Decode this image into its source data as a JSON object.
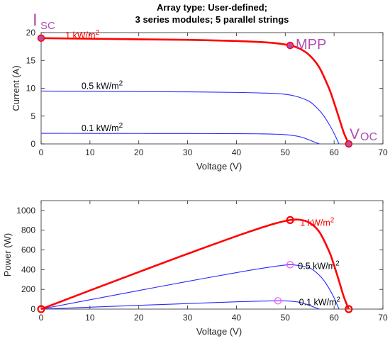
{
  "chart_data": [
    {
      "type": "line",
      "title": "Array type: User-defined;\n3 series modules; 5 parallel strings",
      "title_lines": [
        "Array type: User-defined;",
        "3 series modules; 5 parallel strings"
      ],
      "xlabel": "Voltage (V)",
      "ylabel": "Current (A)",
      "xlim": [
        0,
        70
      ],
      "ylim": [
        0,
        20
      ],
      "xticks": [
        0,
        10,
        20,
        30,
        40,
        50,
        60,
        70
      ],
      "yticks": [
        0,
        5,
        10,
        15,
        20
      ],
      "grid": false,
      "series": [
        {
          "name": "1 kW/m²",
          "label_text": "1 kW/m",
          "label_sup": "2",
          "color": "#ff0000",
          "x": [
            0,
            10,
            20,
            30,
            40,
            45,
            48,
            51,
            53,
            55,
            57,
            59,
            60,
            61,
            62,
            63
          ],
          "y": [
            19.0,
            18.9,
            18.8,
            18.7,
            18.5,
            18.3,
            18.1,
            17.7,
            17.1,
            15.9,
            13.7,
            9.9,
            7.4,
            4.7,
            2.0,
            0
          ]
        },
        {
          "name": "0.5 kW/m²",
          "label_text": "0.5 kW/m",
          "label_sup": "2",
          "color": "#2929ff",
          "x": [
            0,
            10,
            20,
            30,
            40,
            45,
            49,
            52,
            55,
            57,
            58,
            59,
            60,
            61
          ],
          "y": [
            9.5,
            9.45,
            9.4,
            9.35,
            9.25,
            9.15,
            9.0,
            8.6,
            7.6,
            6.0,
            4.9,
            3.5,
            1.9,
            0
          ]
        },
        {
          "name": "0.1 kW/m²",
          "label_text": "0.1 kW/m",
          "label_sup": "2",
          "color": "#2929ff",
          "x": [
            0,
            10,
            20,
            30,
            40,
            45,
            48,
            50,
            52,
            53,
            54,
            55,
            56,
            57
          ],
          "y": [
            1.9,
            1.89,
            1.88,
            1.87,
            1.84,
            1.81,
            1.75,
            1.66,
            1.46,
            1.28,
            1.02,
            0.68,
            0.32,
            0
          ]
        }
      ],
      "markers": [
        {
          "name": "Isc",
          "x": 0,
          "y": 19.0,
          "style": "filled",
          "color": "#b04fb0"
        },
        {
          "name": "MPP",
          "x": 51,
          "y": 17.7,
          "style": "filled",
          "color": "#b04fb0"
        },
        {
          "name": "Voc",
          "x": 63,
          "y": 0,
          "style": "filled",
          "color": "#b04fb0"
        }
      ],
      "annotations": {
        "isc_main": "I",
        "isc_sub": "SC",
        "mpp": "MPP",
        "voc_main": "V",
        "voc_sub": "OC"
      }
    },
    {
      "type": "line",
      "title": "",
      "xlabel": "Voltage (V)",
      "ylabel": "Power (W)",
      "xlim": [
        0,
        70
      ],
      "ylim": [
        0,
        1100
      ],
      "xticks": [
        0,
        10,
        20,
        30,
        40,
        50,
        60,
        70
      ],
      "yticks": [
        0,
        200,
        400,
        600,
        800,
        1000
      ],
      "grid": false,
      "series": [
        {
          "name": "1 kW/m²",
          "label_text": "1 kW/m",
          "label_sup": "2",
          "color": "#ff0000",
          "x": [
            0,
            10,
            20,
            30,
            40,
            45,
            48,
            51,
            53,
            55,
            57,
            59,
            60,
            61,
            62,
            63
          ],
          "y": [
            0,
            189,
            376,
            561,
            740,
            824,
            869,
            903,
            906,
            875,
            781,
            584,
            444,
            287,
            124,
            0
          ]
        },
        {
          "name": "0.5 kW/m²",
          "label_text": "0.5 kW/m",
          "label_sup": "2",
          "color": "#2929ff",
          "x": [
            0,
            10,
            20,
            30,
            40,
            45,
            49,
            51,
            52,
            55,
            57,
            58,
            59,
            60,
            61
          ],
          "y": [
            0,
            95,
            188,
            281,
            370,
            412,
            441,
            450,
            447,
            418,
            342,
            284,
            207,
            114,
            0
          ]
        },
        {
          "name": "0.1 kW/m²",
          "label_text": "0.1 kW/m",
          "label_sup": "2",
          "color": "#2929ff",
          "x": [
            0,
            10,
            20,
            30,
            40,
            45,
            48,
            50,
            52,
            53,
            54,
            55,
            56,
            57
          ],
          "y": [
            0,
            19,
            38,
            56,
            74,
            81,
            84,
            83,
            76,
            68,
            55,
            37,
            18,
            0
          ]
        }
      ],
      "markers": [
        {
          "name": "Isc",
          "x": 0,
          "y": 0,
          "style": "ring",
          "color": "#ff0000"
        },
        {
          "name": "MPP",
          "x": 51,
          "y": 903,
          "style": "ring",
          "color": "#ff0000"
        },
        {
          "name": "Voc",
          "x": 63,
          "y": 0,
          "style": "ring",
          "color": "#ff0000"
        },
        {
          "name": "MPP 0.5",
          "x": 51,
          "y": 450,
          "style": "ring-thin",
          "color": "#ff44ff"
        },
        {
          "name": "MPP 0.1",
          "x": 48.5,
          "y": 84,
          "style": "ring-thin",
          "color": "#ff44ff"
        }
      ]
    }
  ]
}
